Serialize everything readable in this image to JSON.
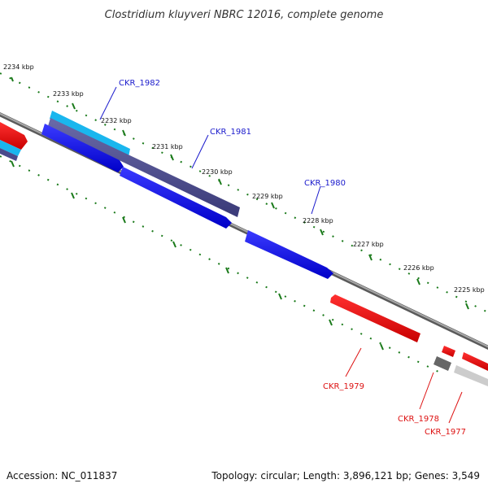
{
  "title": "Clostridium kluyveri NBRC 12016, complete genome",
  "scale_labels": [
    "2234 kbp",
    "2233 kbp",
    "2232 kbp",
    "2231 kbp",
    "2230 kbp",
    "2229 kbp",
    "2228 kbp",
    "2227 kbp",
    "2226 kbp",
    "2225 kbp"
  ],
  "genes": {
    "forward": [
      "CKR_1982",
      "CKR_1981",
      "CKR_1980"
    ],
    "reverse": [
      "CKR_1979",
      "CKR_1978",
      "CKR_1977"
    ]
  },
  "colors": {
    "backbone": "#808080",
    "forward_cds": "#0000ee",
    "reverse_cds": "#ee0000",
    "cyan_feature": "#1ab6ee",
    "slate_feature": "#4a4a8c",
    "gray_feature": "#666666",
    "light_gray_feature": "#cccccc",
    "tick": "#1a7a1a"
  },
  "footer": {
    "accession": "Accession: NC_011837",
    "summary": "Topology: circular; Length: 3,896,121 bp; Genes: 3,549"
  }
}
